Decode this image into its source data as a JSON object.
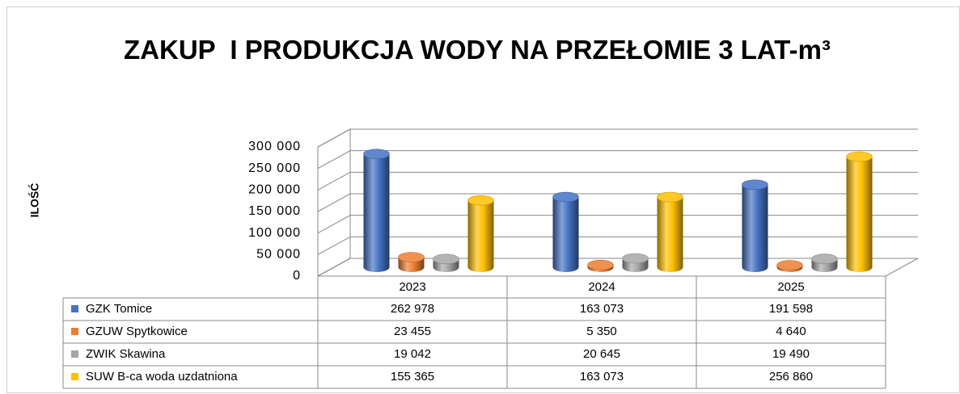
{
  "chart_data": {
    "type": "bar3d",
    "title": "ZAKUP  I PRODUKCJA WODY NA PRZEŁOMIE 3 LAT-m³",
    "ylabel": "ILOŚĆ",
    "categories": [
      "2023",
      "2024",
      "2025"
    ],
    "series": [
      {
        "name": "GZK Tomice",
        "color": "#4472c4",
        "values": [
          262978,
          163073,
          191598
        ],
        "value_labels": [
          "262 978",
          "163 073",
          "191 598"
        ]
      },
      {
        "name": "GZUW Spytkowice",
        "color": "#ed7d31",
        "values": [
          23455,
          5350,
          4640
        ],
        "value_labels": [
          "23 455",
          "5 350",
          "4 640"
        ]
      },
      {
        "name": "ZWIK Skawina",
        "color": "#a5a5a5",
        "values": [
          19042,
          20645,
          19490
        ],
        "value_labels": [
          "19 042",
          "20 645",
          "19 490"
        ]
      },
      {
        "name": "SUW B-ca woda uzdatniona",
        "color": "#ffc000",
        "values": [
          155365,
          163073,
          256860
        ],
        "value_labels": [
          "155 365",
          "163 073",
          "256 860"
        ]
      }
    ],
    "ylim": [
      0,
      300000
    ],
    "yticks": [
      0,
      {
        "value": 50000,
        "label": "50 000"
      },
      {
        "value": 100000,
        "label": "100 000"
      },
      {
        "value": 150000,
        "label": "150 000"
      },
      {
        "value": 200000,
        "label": "200 000"
      },
      {
        "value": 250000,
        "label": "250 000"
      },
      {
        "value": 300000,
        "label": "300 000"
      }
    ],
    "grid": true
  }
}
